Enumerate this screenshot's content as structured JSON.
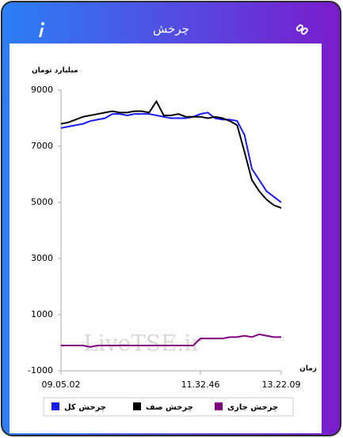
{
  "chart_data": {
    "type": "line",
    "title": "چرخش",
    "y_axis_label": "میلیارد تومان",
    "x_axis_label": "زمان",
    "annotations": [
      "LiveTSE.ir"
    ],
    "categories": [
      "09.05.02",
      null,
      null,
      null,
      null,
      null,
      null,
      null,
      null,
      null,
      null,
      null,
      null,
      null,
      null,
      null,
      null,
      null,
      null,
      "11.32.46",
      null,
      null,
      null,
      null,
      null,
      null,
      null,
      null,
      null,
      null,
      "13.22.09"
    ],
    "series": [
      {
        "name": "چرخش کل",
        "color": "#1a1aff",
        "values": [
          7650,
          7700,
          7750,
          7800,
          7900,
          7950,
          8000,
          8150,
          8150,
          8100,
          8150,
          8150,
          8150,
          8100,
          8050,
          8000,
          8000,
          8000,
          8050,
          8150,
          8200,
          8000,
          7950,
          7950,
          7900,
          7400,
          6200,
          5800,
          5400,
          5200,
          5000
        ]
      },
      {
        "name": "چرخش صف",
        "color": "#000000",
        "values": [
          7800,
          7850,
          7950,
          8050,
          8100,
          8150,
          8200,
          8250,
          8200,
          8200,
          8250,
          8250,
          8200,
          8600,
          8100,
          8100,
          8150,
          8050,
          8050,
          8050,
          8000,
          8050,
          8000,
          7900,
          7750,
          6800,
          5800,
          5400,
          5100,
          4900,
          4800
        ]
      },
      {
        "name": "چرخش جاری",
        "color": "#800080",
        "values": [
          -100,
          -100,
          -100,
          -100,
          -150,
          -100,
          -100,
          -100,
          -100,
          -100,
          -100,
          -100,
          -100,
          -100,
          -100,
          -100,
          -100,
          -100,
          -100,
          150,
          150,
          150,
          150,
          200,
          200,
          250,
          200,
          300,
          250,
          200,
          200
        ]
      }
    ],
    "ylim": [
      -1000,
      9000
    ],
    "yticks": [
      -1000,
      1000,
      3000,
      5000,
      7000,
      9000
    ]
  }
}
